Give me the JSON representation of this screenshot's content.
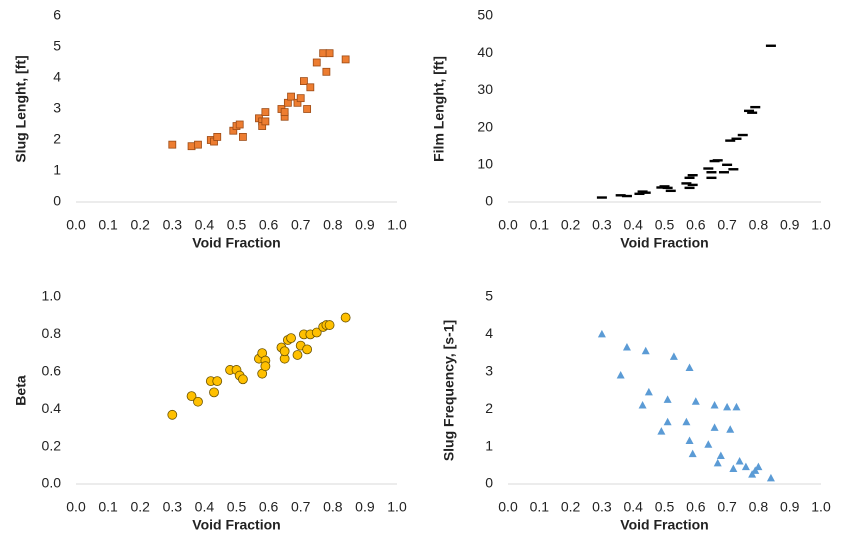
{
  "chart_data": [
    {
      "type": "scatter",
      "xlabel": "Void Fraction",
      "ylabel": "Slug Lenght, [ft]",
      "marker": "square",
      "color": "#ed7d31",
      "edgecolor": "#9c4a14",
      "x": [
        0.3,
        0.36,
        0.38,
        0.42,
        0.43,
        0.44,
        0.49,
        0.5,
        0.51,
        0.52,
        0.57,
        0.58,
        0.58,
        0.59,
        0.59,
        0.64,
        0.65,
        0.65,
        0.66,
        0.67,
        0.69,
        0.7,
        0.71,
        0.72,
        0.73,
        0.75,
        0.77,
        0.79,
        0.78,
        0.84
      ],
      "values": [
        1.85,
        1.8,
        1.85,
        2.0,
        1.95,
        2.1,
        2.3,
        2.45,
        2.5,
        2.1,
        2.7,
        2.6,
        2.45,
        2.9,
        2.6,
        3.0,
        2.75,
        2.9,
        3.2,
        3.4,
        3.2,
        3.35,
        3.9,
        3.0,
        3.7,
        4.5,
        4.8,
        4.8,
        4.2,
        4.6
      ],
      "xlim": [
        0,
        1
      ],
      "ylim": [
        0,
        6
      ],
      "xticks": [
        {
          "value": 0,
          "label": "0.0"
        },
        0.1,
        0.2,
        0.3,
        0.4,
        0.5,
        0.6,
        0.7,
        0.8,
        0.9,
        {
          "value": 1,
          "label": "1.0"
        }
      ],
      "yticks": [
        0,
        1,
        2,
        3,
        4,
        5,
        6
      ]
    },
    {
      "type": "scatter",
      "xlabel": "Void Fraction",
      "ylabel": "Film Lenght, [ft]",
      "marker": "dash",
      "color": "#000000",
      "edgecolor": "#000000",
      "x": [
        0.3,
        0.36,
        0.38,
        0.42,
        0.43,
        0.44,
        0.49,
        0.5,
        0.51,
        0.52,
        0.57,
        0.58,
        0.58,
        0.59,
        0.59,
        0.64,
        0.65,
        0.65,
        0.66,
        0.67,
        0.69,
        0.7,
        0.71,
        0.72,
        0.73,
        0.75,
        0.77,
        0.79,
        0.78,
        0.84
      ],
      "values": [
        1.2,
        1.8,
        1.6,
        2.2,
        2.8,
        2.5,
        3.9,
        4.2,
        3.8,
        3.0,
        5.0,
        6.5,
        3.8,
        7.2,
        4.6,
        9.0,
        6.5,
        8.0,
        11.0,
        11.2,
        8.0,
        10.0,
        16.5,
        8.8,
        17.0,
        18.0,
        24.5,
        25.5,
        24.0,
        42
      ],
      "xlim": [
        0,
        1
      ],
      "ylim": [
        0,
        50
      ],
      "xticks": [
        {
          "value": 0,
          "label": "0.0"
        },
        0.1,
        0.2,
        0.3,
        0.4,
        0.5,
        0.6,
        0.7,
        0.8,
        0.9,
        {
          "value": 1,
          "label": "1.0"
        }
      ],
      "yticks": [
        0,
        10,
        20,
        30,
        40,
        50
      ]
    },
    {
      "type": "scatter",
      "xlabel": "Void Fraction",
      "ylabel": "Beta",
      "marker": "circle",
      "color": "#ffc000",
      "edgecolor": "#6b5200",
      "x": [
        0.3,
        0.36,
        0.38,
        0.42,
        0.43,
        0.44,
        0.48,
        0.5,
        0.51,
        0.52,
        0.57,
        0.58,
        0.58,
        0.59,
        0.59,
        0.64,
        0.65,
        0.65,
        0.66,
        0.67,
        0.69,
        0.7,
        0.71,
        0.72,
        0.73,
        0.75,
        0.77,
        0.78,
        0.79,
        0.84
      ],
      "values": [
        0.37,
        0.47,
        0.44,
        0.55,
        0.49,
        0.55,
        0.61,
        0.61,
        0.58,
        0.56,
        0.67,
        0.7,
        0.59,
        0.66,
        0.63,
        0.73,
        0.67,
        0.71,
        0.77,
        0.78,
        0.69,
        0.74,
        0.8,
        0.72,
        0.8,
        0.81,
        0.84,
        0.85,
        0.85,
        0.89
      ],
      "xlim": [
        0,
        1
      ],
      "ylim": [
        0,
        1
      ],
      "xticks": [
        {
          "value": 0,
          "label": "0.0"
        },
        0.1,
        0.2,
        0.3,
        0.4,
        0.5,
        0.6,
        0.7,
        0.8,
        0.9,
        {
          "value": 1,
          "label": "1.0"
        }
      ],
      "yticks": [
        {
          "value": 0,
          "label": "0.0"
        },
        0.2,
        0.4,
        0.6,
        0.8,
        {
          "value": 1,
          "label": "1.0"
        }
      ]
    },
    {
      "type": "scatter",
      "xlabel": "Void Fraction",
      "ylabel": "Slug Frequency, [s-1]",
      "marker": "triangle",
      "color": "#5b9bd5",
      "edgecolor": "#5b9bd5",
      "x": [
        0.3,
        0.36,
        0.38,
        0.43,
        0.44,
        0.45,
        0.49,
        0.51,
        0.51,
        0.53,
        0.57,
        0.58,
        0.58,
        0.59,
        0.6,
        0.64,
        0.66,
        0.66,
        0.67,
        0.68,
        0.7,
        0.71,
        0.72,
        0.73,
        0.74,
        0.76,
        0.78,
        0.79,
        0.8,
        0.84
      ],
      "values": [
        4.0,
        2.9,
        3.65,
        2.1,
        3.55,
        2.45,
        1.4,
        2.25,
        1.65,
        3.4,
        1.65,
        1.15,
        3.1,
        0.8,
        2.2,
        1.05,
        2.1,
        1.5,
        0.55,
        0.75,
        2.05,
        1.45,
        0.4,
        2.05,
        0.6,
        0.45,
        0.25,
        0.35,
        0.45,
        0.15
      ],
      "xlim": [
        0,
        1
      ],
      "ylim": [
        0,
        5
      ],
      "xticks": [
        {
          "value": 0,
          "label": "0.0"
        },
        0.1,
        0.2,
        0.3,
        0.4,
        0.5,
        0.6,
        0.7,
        0.8,
        0.9,
        {
          "value": 1,
          "label": "1.0"
        }
      ],
      "yticks": [
        0,
        1,
        2,
        3,
        4,
        5
      ]
    }
  ]
}
